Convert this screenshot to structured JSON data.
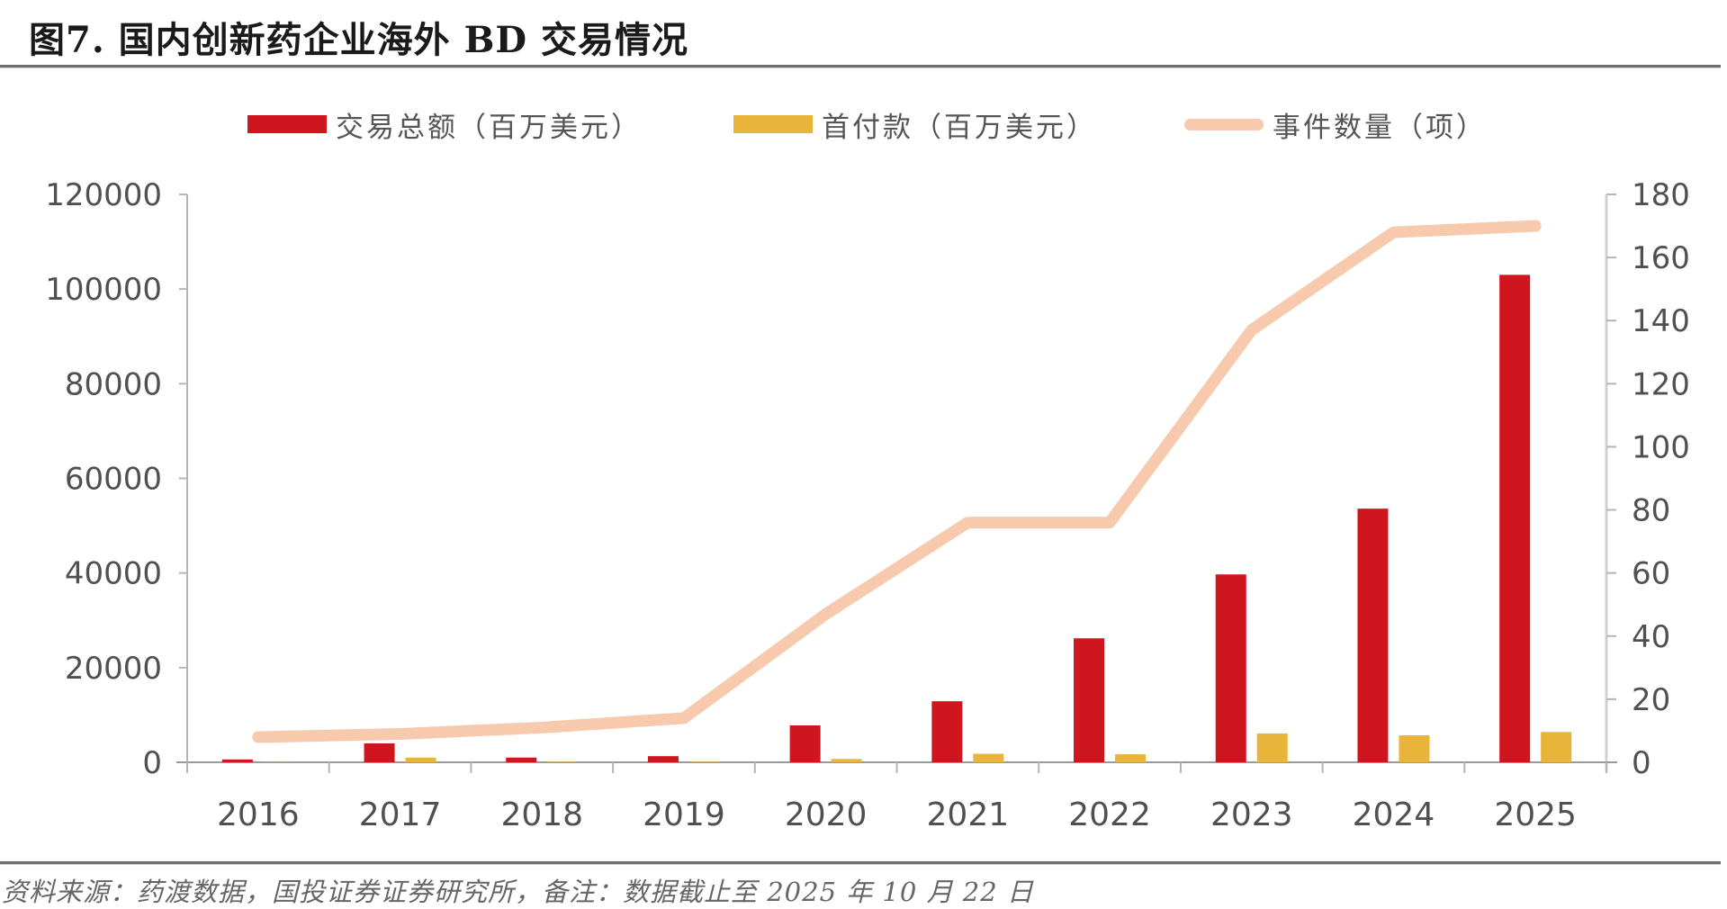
{
  "figure": {
    "title": "图7. 国内创新药企业海外 BD 交易情况",
    "source_note": "资料来源：药渡数据，国投证券证券研究所，备注：数据截止至 2025 年 10 月 22 日"
  },
  "legend": [
    {
      "label": "交易总额（百万美元）",
      "color": "#cf161e",
      "kind": "bar"
    },
    {
      "label": "首付款（百万美元）",
      "color": "#e8b43a",
      "kind": "bar"
    },
    {
      "label": "事件数量（项）",
      "color": "#f7c9ad",
      "kind": "line"
    }
  ],
  "chart_data": {
    "type": "bar",
    "title": "图7. 国内创新药企业海外 BD 交易情况",
    "xlabel": "",
    "categories": [
      "2016",
      "2017",
      "2018",
      "2019",
      "2020",
      "2021",
      "2022",
      "2023",
      "2024",
      "2025"
    ],
    "series": [
      {
        "name": "交易总额（百万美元）",
        "type": "bar",
        "axis": "left",
        "color": "#cf161e",
        "values": [
          600,
          4000,
          1000,
          1300,
          7800,
          12900,
          26200,
          39700,
          53600,
          103000
        ]
      },
      {
        "name": "首付款（百万美元）",
        "type": "bar",
        "axis": "left",
        "color": "#e8b43a",
        "values": [
          50,
          1000,
          100,
          100,
          700,
          1800,
          1700,
          6100,
          5700,
          6400
        ]
      },
      {
        "name": "事件数量（项）",
        "type": "line",
        "axis": "right",
        "color": "#f7c9ad",
        "values": [
          8,
          9,
          11,
          14,
          47,
          76,
          76,
          137,
          168,
          170
        ]
      }
    ],
    "y_left": {
      "label": "",
      "lim": [
        0,
        120000
      ],
      "ticks": [
        0,
        20000,
        40000,
        60000,
        80000,
        100000,
        120000
      ]
    },
    "y_right": {
      "label": "",
      "lim": [
        0,
        180
      ],
      "ticks": [
        0,
        20,
        40,
        60,
        80,
        100,
        120,
        140,
        160,
        180
      ]
    },
    "grid": false,
    "legend_position": "top-center"
  }
}
